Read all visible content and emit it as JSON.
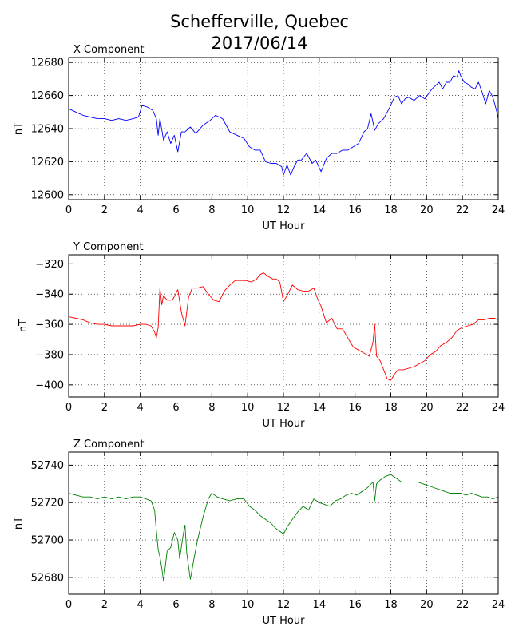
{
  "figure": {
    "title_line1": "Schefferville, Quebec",
    "title_line2": "2017/06/14"
  },
  "chart_data": [
    {
      "type": "line",
      "title": "X Component",
      "xlabel": "UT Hour",
      "ylabel": "nT",
      "xlim": [
        0,
        24
      ],
      "ylim": [
        12597,
        12683
      ],
      "xticks": [
        0,
        2,
        4,
        6,
        8,
        10,
        12,
        14,
        16,
        18,
        20,
        22,
        24
      ],
      "yticks": [
        12600,
        12620,
        12640,
        12660,
        12680
      ],
      "grid": true,
      "color": "#0000ff",
      "series": [
        {
          "x": [
            0,
            0.4,
            0.8,
            1.2,
            1.6,
            2.0,
            2.4,
            2.8,
            3.2,
            3.6,
            3.9,
            4.1,
            4.4,
            4.7,
            4.9,
            5.0,
            5.1,
            5.3,
            5.5,
            5.7,
            5.9,
            6.1,
            6.3,
            6.5,
            6.8,
            7.1,
            7.5,
            7.9,
            8.2,
            8.6,
            9.0,
            9.4,
            9.8,
            10.1,
            10.4,
            10.7,
            11.0,
            11.3,
            11.6,
            11.9,
            12.0,
            12.2,
            12.4,
            12.6,
            12.8,
            13.0,
            13.3,
            13.6,
            13.8,
            14.1,
            14.4,
            14.7,
            15.0,
            15.3,
            15.6,
            15.9,
            16.2,
            16.5,
            16.7,
            16.9,
            17.1,
            17.3,
            17.6,
            17.9,
            18.2,
            18.4,
            18.6,
            18.8,
            19.0,
            19.3,
            19.6,
            19.9,
            20.1,
            20.3,
            20.5,
            20.7,
            20.9,
            21.1,
            21.3,
            21.5,
            21.7,
            21.8,
            21.9,
            22.1,
            22.3,
            22.5,
            22.7,
            22.9,
            23.1,
            23.3,
            23.5,
            23.7,
            23.9,
            24.0
          ],
          "y": [
            12652,
            12650,
            12648,
            12647,
            12646,
            12646,
            12645,
            12646,
            12645,
            12646,
            12647,
            12654,
            12653,
            12651,
            12646,
            12636,
            12646,
            12633,
            12638,
            12631,
            12636,
            12626,
            12638,
            12638,
            12641,
            12637,
            12642,
            12645,
            12648,
            12646,
            12638,
            12636,
            12634,
            12629,
            12627,
            12627,
            12620,
            12619,
            12619,
            12617,
            12612,
            12618,
            12612,
            12617,
            12621,
            12621,
            12625,
            12619,
            12621,
            12614,
            12622,
            12625,
            12625,
            12627,
            12627,
            12629,
            12631,
            12638,
            12640,
            12649,
            12639,
            12643,
            12646,
            12652,
            12659,
            12660,
            12655,
            12658,
            12659,
            12657,
            12660,
            12658,
            12661,
            12664,
            12666,
            12668,
            12664,
            12668,
            12668,
            12672,
            12671,
            12675,
            12672,
            12668,
            12667,
            12665,
            12664,
            12668,
            12662,
            12655,
            12663,
            12659,
            12651,
            12646
          ]
        }
      ]
    },
    {
      "type": "line",
      "title": "Y Component",
      "xlabel": "UT Hour",
      "ylabel": "nT",
      "xlim": [
        0,
        24
      ],
      "ylim": [
        -408,
        -314
      ],
      "xticks": [
        0,
        2,
        4,
        6,
        8,
        10,
        12,
        14,
        16,
        18,
        20,
        22,
        24
      ],
      "yticks": [
        -320,
        -340,
        -360,
        -380,
        -400
      ],
      "grid": true,
      "color": "#ff0000",
      "series": [
        {
          "x": [
            0,
            0.4,
            0.8,
            1.2,
            1.6,
            2.0,
            2.4,
            2.8,
            3.2,
            3.6,
            4.0,
            4.3,
            4.6,
            4.8,
            4.9,
            5.0,
            5.1,
            5.2,
            5.3,
            5.5,
            5.8,
            6.1,
            6.3,
            6.5,
            6.7,
            6.9,
            7.2,
            7.5,
            7.8,
            8.1,
            8.4,
            8.7,
            9.0,
            9.3,
            9.6,
            9.9,
            10.2,
            10.5,
            10.7,
            10.9,
            11.1,
            11.4,
            11.6,
            11.8,
            12.0,
            12.2,
            12.5,
            12.8,
            13.1,
            13.4,
            13.7,
            13.9,
            14.1,
            14.4,
            14.7,
            15.0,
            15.3,
            15.6,
            15.9,
            16.2,
            16.5,
            16.8,
            17.0,
            17.1,
            17.2,
            17.4,
            17.6,
            17.8,
            18.0,
            18.2,
            18.4,
            18.7,
            19.0,
            19.3,
            19.6,
            19.9,
            20.2,
            20.5,
            20.8,
            21.1,
            21.4,
            21.7,
            22.0,
            22.3,
            22.6,
            22.9,
            23.2,
            23.5,
            23.8,
            24.0
          ],
          "y": [
            -355,
            -356,
            -357,
            -359,
            -360,
            -360,
            -361,
            -361,
            -361,
            -361,
            -360,
            -360,
            -361,
            -365,
            -369,
            -362,
            -336,
            -347,
            -341,
            -344,
            -344,
            -337,
            -352,
            -361,
            -342,
            -336,
            -336,
            -335,
            -340,
            -344,
            -345,
            -338,
            -334,
            -331,
            -331,
            -331,
            -332,
            -330,
            -327,
            -326,
            -328,
            -330,
            -330,
            -332,
            -345,
            -341,
            -334,
            -337,
            -338,
            -338,
            -336,
            -343,
            -348,
            -359,
            -356,
            -363,
            -363,
            -369,
            -375,
            -377,
            -379,
            -381,
            -372,
            -360,
            -381,
            -384,
            -390,
            -396,
            -397,
            -393,
            -390,
            -390,
            -389,
            -388,
            -386,
            -384,
            -380,
            -378,
            -374,
            -372,
            -369,
            -364,
            -362,
            -361,
            -360,
            -357,
            -357,
            -356,
            -356,
            -357
          ]
        }
      ]
    },
    {
      "type": "line",
      "title": "Z Component",
      "xlabel": "UT Hour",
      "ylabel": "nT",
      "xlim": [
        0,
        24
      ],
      "ylim": [
        52671,
        52747
      ],
      "xticks": [
        0,
        2,
        4,
        6,
        8,
        10,
        12,
        14,
        16,
        18,
        20,
        22,
        24
      ],
      "yticks": [
        52680,
        52700,
        52720,
        52740
      ],
      "grid": true,
      "color": "#008000",
      "series": [
        {
          "x": [
            0,
            0.4,
            0.8,
            1.2,
            1.6,
            2.0,
            2.4,
            2.8,
            3.2,
            3.6,
            4.0,
            4.3,
            4.6,
            4.8,
            4.9,
            5.0,
            5.1,
            5.2,
            5.3,
            5.5,
            5.7,
            5.9,
            6.1,
            6.2,
            6.4,
            6.5,
            6.6,
            6.8,
            7.0,
            7.2,
            7.5,
            7.8,
            8.0,
            8.3,
            8.6,
            9.0,
            9.4,
            9.8,
            10.1,
            10.4,
            10.7,
            11.0,
            11.3,
            11.6,
            11.9,
            12.0,
            12.2,
            12.5,
            12.8,
            13.1,
            13.4,
            13.7,
            14.0,
            14.3,
            14.6,
            14.9,
            15.2,
            15.5,
            15.8,
            16.1,
            16.4,
            16.7,
            17.0,
            17.1,
            17.2,
            17.4,
            17.7,
            18.0,
            18.3,
            18.6,
            18.9,
            19.2,
            19.5,
            19.8,
            20.1,
            20.4,
            20.7,
            21.0,
            21.3,
            21.6,
            21.9,
            22.2,
            22.5,
            22.8,
            23.1,
            23.4,
            23.7,
            24.0
          ],
          "y": [
            52725,
            52724,
            52723,
            52723,
            52722,
            52723,
            52722,
            52723,
            52722,
            52723,
            52723,
            52722,
            52721,
            52716,
            52705,
            52695,
            52691,
            52685,
            52678,
            52694,
            52696,
            52704,
            52700,
            52690,
            52703,
            52708,
            52693,
            52679,
            52690,
            52700,
            52712,
            52722,
            52725,
            52723,
            52722,
            52721,
            52722,
            52722,
            52718,
            52716,
            52713,
            52711,
            52709,
            52706,
            52704,
            52703,
            52707,
            52711,
            52715,
            52718,
            52716,
            52722,
            52720,
            52719,
            52718,
            52721,
            52722,
            52724,
            52725,
            52724,
            52726,
            52728,
            52731,
            52721,
            52730,
            52732,
            52734,
            52735,
            52733,
            52731,
            52731,
            52731,
            52731,
            52730,
            52729,
            52728,
            52727,
            52726,
            52725,
            52725,
            52725,
            52724,
            52725,
            52724,
            52723,
            52723,
            52722,
            52723
          ]
        }
      ]
    }
  ]
}
